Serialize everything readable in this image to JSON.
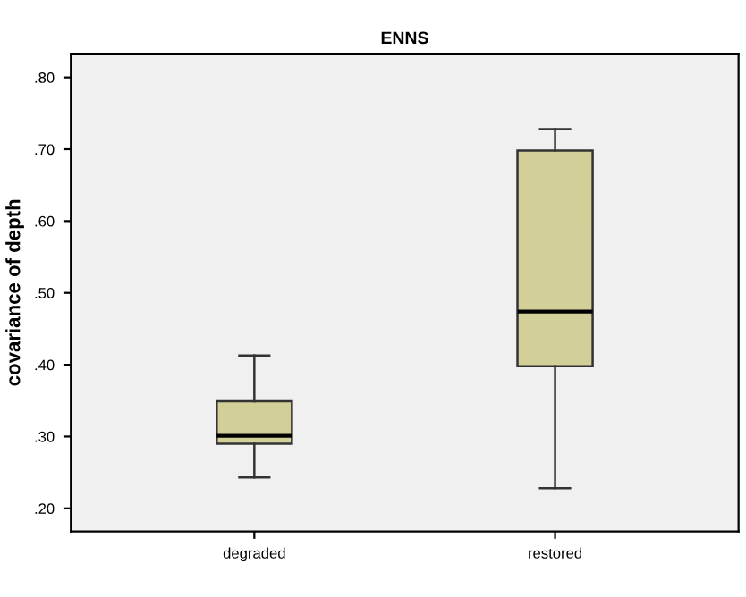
{
  "chart_data": {
    "type": "box",
    "title": "ENNS",
    "ylabel": "covariance of depth",
    "categories": [
      "degraded",
      "restored"
    ],
    "boxes": [
      {
        "low": 0.243,
        "q1": 0.29,
        "median": 0.301,
        "q3": 0.349,
        "high": 0.413
      },
      {
        "low": 0.228,
        "q1": 0.398,
        "median": 0.474,
        "q3": 0.698,
        "high": 0.728
      }
    ],
    "color": "#d3cf99",
    "ylim": [
      0.168,
      0.833
    ],
    "yticks": [
      {
        "value": 0.2,
        "label": ".20"
      },
      {
        "value": 0.3,
        "label": ".30"
      },
      {
        "value": 0.4,
        "label": ".40"
      },
      {
        "value": 0.5,
        "label": ".50"
      },
      {
        "value": 0.6,
        "label": ".60"
      },
      {
        "value": 0.7,
        "label": ".70"
      },
      {
        "value": 0.8,
        "label": ".80"
      }
    ],
    "grid": false,
    "legend": false
  }
}
